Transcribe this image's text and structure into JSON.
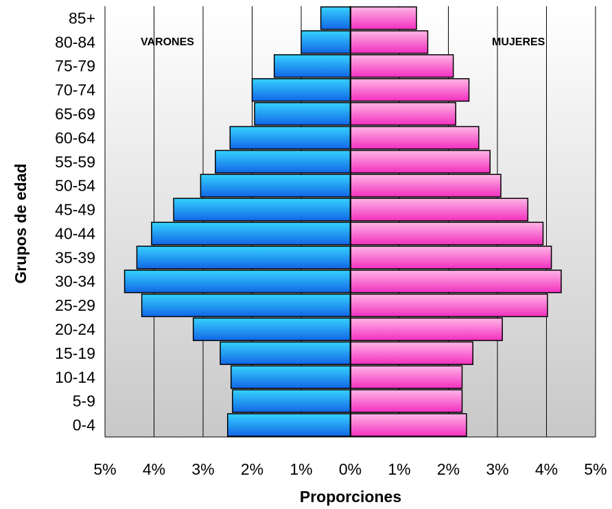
{
  "chart_data": {
    "type": "bar",
    "orientation": "horizontal-population-pyramid",
    "categories": [
      "0-4",
      "5-9",
      "10-14",
      "15-19",
      "20-24",
      "25-29",
      "30-34",
      "35-39",
      "40-44",
      "45-49",
      "50-54",
      "55-59",
      "60-64",
      "65-69",
      "70-74",
      "75-79",
      "80-84",
      "85+"
    ],
    "series": [
      {
        "name": "VARONES",
        "values": [
          2.5,
          2.4,
          2.43,
          2.65,
          3.2,
          4.25,
          4.6,
          4.35,
          4.05,
          3.6,
          3.05,
          2.75,
          2.45,
          1.95,
          2.0,
          1.55,
          1.0,
          0.6
        ],
        "color": "#1a9bf2"
      },
      {
        "name": "MUJERES",
        "values": [
          2.37,
          2.28,
          2.28,
          2.5,
          3.1,
          4.02,
          4.3,
          4.1,
          3.93,
          3.62,
          3.07,
          2.85,
          2.62,
          2.15,
          2.42,
          2.1,
          1.58,
          1.35
        ],
        "color": "#f34fcf"
      }
    ],
    "xlabel": "Proporciones",
    "ylabel": "Grupos de edad",
    "xticks": [
      "5%",
      "4%",
      "3%",
      "2%",
      "1%",
      "0%",
      "1%",
      "2%",
      "3%",
      "4%",
      "5%"
    ],
    "xlim": [
      -5,
      5
    ],
    "grid": true,
    "male_colors": {
      "light": "#36d2ff",
      "dark": "#1266e6"
    },
    "female_colors": {
      "light": "#ffb6e6",
      "dark": "#f22fbf"
    }
  }
}
